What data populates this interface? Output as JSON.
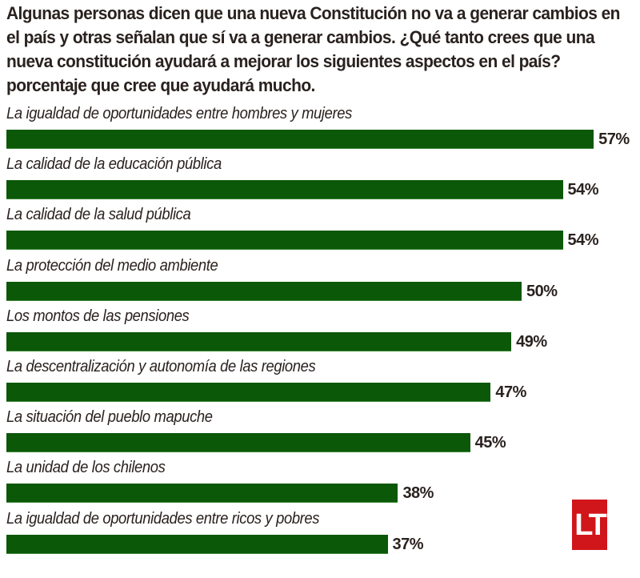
{
  "chart_data": {
    "type": "bar",
    "orientation": "horizontal",
    "title": "Algunas personas dicen que una nueva Constitución no va a generar cambios en el país y otras señalan que sí va a generar cambios. ¿Qué tanto crees que una nueva constitución ayudará a mejorar los siguientes aspectos en el país? porcentaje que cree que ayudará mucho.",
    "xlabel": "",
    "ylabel": "",
    "value_suffix": "%",
    "xlim": [
      0,
      60
    ],
    "grid": false,
    "legend": "none",
    "bar_color": "#0b5808",
    "categories": [
      "La igualdad de oportunidades entre hombres y mujeres",
      "La calidad de la educación pública",
      "La calidad de la salud pública",
      "La protección del medio ambiente",
      "Los montos de las pensiones",
      "La descentralización y autonomía de las regiones",
      "La situación del pueblo mapuche",
      "La unidad de los chilenos",
      "La igualdad de oportunidades entre ricos y pobres"
    ],
    "values": [
      57,
      54,
      54,
      50,
      49,
      47,
      45,
      38,
      37
    ],
    "data_labels": [
      "57%",
      "54%",
      "54%",
      "50%",
      "49%",
      "47%",
      "45%",
      "38%",
      "37%"
    ]
  },
  "logo": {
    "text": "LT",
    "color": "#d0161b"
  }
}
